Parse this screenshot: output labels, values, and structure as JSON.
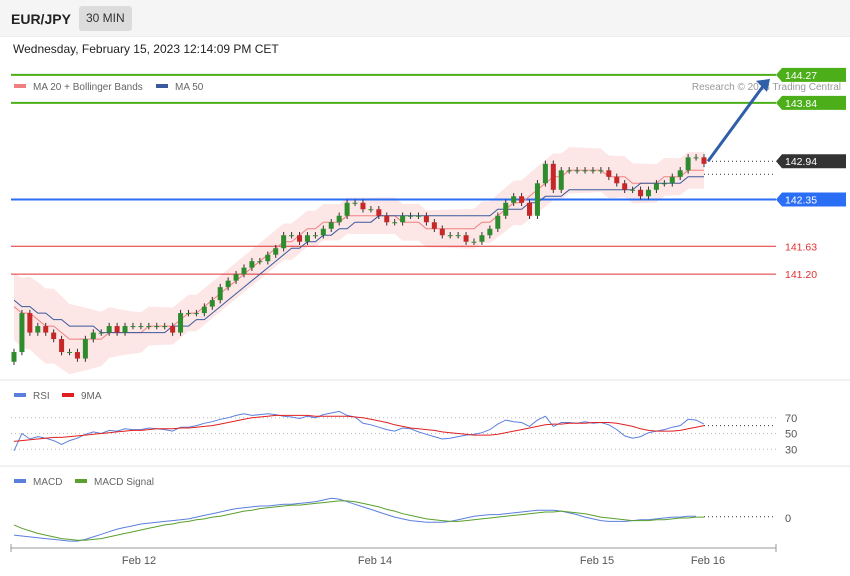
{
  "header": {
    "symbol": "EUR/JPY",
    "timeframe": "30 MIN"
  },
  "timestamp": "Wednesday, February 15, 2023 12:14:09 PM CET",
  "credit": "Research © 2023 Trading Central",
  "chart_data": {
    "type": "candlestick",
    "price_panel": {
      "legend": [
        {
          "name": "MA 20 + Bollinger Bands",
          "color": "#f08080"
        },
        {
          "name": "MA 50",
          "color": "#3a5a9c"
        }
      ],
      "y_range": [
        139.6,
        144.5
      ],
      "levels": [
        {
          "label": "144.27",
          "value": 144.27,
          "kind": "resistance",
          "color": "#4caf1a"
        },
        {
          "label": "143.84",
          "value": 143.84,
          "kind": "resistance",
          "color": "#4caf1a"
        },
        {
          "label": "142.94",
          "value": 142.94,
          "kind": "last-price",
          "color": "#333333"
        },
        {
          "label": "142.35",
          "value": 142.35,
          "kind": "pivot",
          "color": "#2a6ef5"
        },
        {
          "label": "141.63",
          "value": 141.63,
          "kind": "support",
          "color": "#e03030"
        },
        {
          "label": "141.20",
          "value": 141.2,
          "kind": "support",
          "color": "#e03030"
        }
      ],
      "arrow": {
        "from": 142.94,
        "to": 144.27,
        "direction": "up"
      },
      "close": [
        140.0,
        140.6,
        140.3,
        140.4,
        140.3,
        140.2,
        140.0,
        140.0,
        139.9,
        140.2,
        140.3,
        140.3,
        140.4,
        140.3,
        140.4,
        140.4,
        140.4,
        140.4,
        140.4,
        140.4,
        140.3,
        140.6,
        140.6,
        140.6,
        140.7,
        140.8,
        141.0,
        141.1,
        141.2,
        141.3,
        141.4,
        141.4,
        141.5,
        141.6,
        141.8,
        141.8,
        141.7,
        141.8,
        141.8,
        141.9,
        142.0,
        142.1,
        142.3,
        142.3,
        142.2,
        142.2,
        142.1,
        142.0,
        142.0,
        142.1,
        142.1,
        142.1,
        142.0,
        141.9,
        141.8,
        141.8,
        141.8,
        141.7,
        141.7,
        141.8,
        141.9,
        142.1,
        142.3,
        142.4,
        142.3,
        142.1,
        142.6,
        142.9,
        142.5,
        142.8,
        142.8,
        142.8,
        142.8,
        142.8,
        142.8,
        142.7,
        142.6,
        142.5,
        142.5,
        142.4,
        142.5,
        142.6,
        142.6,
        142.7,
        142.8,
        143.0,
        143.0,
        142.9
      ],
      "ma20": [
        140.7,
        140.6,
        140.6,
        140.5,
        140.4,
        140.4,
        140.3,
        140.2,
        140.2,
        140.2,
        140.2,
        140.2,
        140.3,
        140.3,
        140.3,
        140.3,
        140.3,
        140.4,
        140.4,
        140.4,
        140.4,
        140.5,
        140.6,
        140.6,
        140.7,
        140.8,
        140.9,
        141.0,
        141.1,
        141.2,
        141.3,
        141.4,
        141.5,
        141.6,
        141.7,
        141.7,
        141.8,
        141.9,
        141.9,
        142.0,
        142.0,
        142.0,
        142.1,
        142.1,
        142.1,
        142.1,
        142.1,
        142.1,
        142.1,
        142.0,
        142.0,
        142.0,
        141.9,
        141.9,
        141.9,
        141.9,
        141.9,
        141.9,
        141.9,
        142.0,
        142.0,
        142.1,
        142.2,
        142.3,
        142.3,
        142.4,
        142.5,
        142.6,
        142.7,
        142.7,
        142.8,
        142.8,
        142.8,
        142.8,
        142.8,
        142.7,
        142.7,
        142.7,
        142.6,
        142.6,
        142.6,
        142.6,
        142.7,
        142.7,
        142.7,
        142.8,
        142.8,
        142.8
      ],
      "ma50": [
        140.8,
        140.7,
        140.7,
        140.6,
        140.6,
        140.5,
        140.5,
        140.4,
        140.4,
        140.4,
        140.4,
        140.3,
        140.3,
        140.3,
        140.3,
        140.3,
        140.3,
        140.3,
        140.3,
        140.3,
        140.4,
        140.4,
        140.4,
        140.5,
        140.5,
        140.6,
        140.7,
        140.8,
        140.9,
        141.0,
        141.1,
        141.2,
        141.3,
        141.4,
        141.5,
        141.6,
        141.6,
        141.7,
        141.7,
        141.8,
        141.8,
        141.9,
        141.9,
        142.0,
        142.0,
        142.0,
        142.1,
        142.1,
        142.1,
        142.1,
        142.1,
        142.1,
        142.1,
        142.1,
        142.1,
        142.1,
        142.1,
        142.1,
        142.1,
        142.1,
        142.1,
        142.2,
        142.2,
        142.2,
        142.2,
        142.3,
        142.3,
        142.4,
        142.4,
        142.4,
        142.5,
        142.5,
        142.5,
        142.5,
        142.5,
        142.5,
        142.5,
        142.5,
        142.5,
        142.6,
        142.6,
        142.6,
        142.6,
        142.6,
        142.6,
        142.7,
        142.7,
        142.7
      ]
    },
    "rsi_panel": {
      "legend": [
        {
          "name": "RSI",
          "color": "#5b7fdd"
        },
        {
          "name": "9MA",
          "color": "#e02020"
        }
      ],
      "levels": [
        {
          "label": "70",
          "value": 70
        },
        {
          "label": "50",
          "value": 50
        },
        {
          "label": "30",
          "value": 30
        }
      ],
      "y_range": [
        10,
        90
      ],
      "rsi": [
        28,
        50,
        43,
        46,
        44,
        41,
        36,
        41,
        44,
        49,
        52,
        50,
        54,
        53,
        56,
        55,
        55,
        57,
        56,
        55,
        53,
        58,
        58,
        60,
        63,
        65,
        68,
        70,
        73,
        75,
        73,
        74,
        75,
        74,
        72,
        71,
        69,
        72,
        70,
        74,
        76,
        78,
        73,
        71,
        63,
        61,
        58,
        55,
        53,
        57,
        56,
        52,
        49,
        46,
        43,
        44,
        46,
        48,
        49,
        51,
        55,
        62,
        67,
        65,
        64,
        59,
        67,
        72,
        59,
        64,
        64,
        63,
        65,
        63,
        64,
        61,
        55,
        47,
        44,
        46,
        51,
        53,
        55,
        58,
        60,
        68,
        67,
        62
      ],
      "ma9": [
        40,
        41,
        42,
        43,
        44,
        45,
        45,
        46,
        47,
        48,
        49,
        50,
        51,
        52,
        53,
        54,
        54,
        55,
        56,
        56,
        56,
        57,
        57,
        58,
        59,
        60,
        62,
        64,
        66,
        68,
        70,
        71,
        72,
        73,
        73,
        73,
        73,
        73,
        72,
        72,
        72,
        72,
        72,
        71,
        70,
        68,
        66,
        64,
        61,
        59,
        57,
        56,
        55,
        54,
        52,
        51,
        50,
        49,
        48,
        48,
        48,
        49,
        51,
        53,
        55,
        57,
        59,
        61,
        62,
        62,
        63,
        63,
        63,
        64,
        64,
        64,
        63,
        61,
        59,
        56,
        54,
        53,
        53,
        53,
        54,
        56,
        58,
        60
      ]
    },
    "macd_panel": {
      "legend": [
        {
          "name": "MACD",
          "color": "#5b7fdd"
        },
        {
          "name": "MACD Signal",
          "color": "#5aa02c"
        }
      ],
      "levels": [
        {
          "label": "0",
          "value": 0
        }
      ],
      "y_range": [
        -0.35,
        0.35
      ],
      "macd": [
        -0.2,
        -0.21,
        -0.22,
        -0.23,
        -0.24,
        -0.25,
        -0.26,
        -0.27,
        -0.27,
        -0.25,
        -0.22,
        -0.19,
        -0.16,
        -0.13,
        -0.11,
        -0.09,
        -0.07,
        -0.06,
        -0.05,
        -0.04,
        -0.03,
        -0.02,
        -0.01,
        0.01,
        0.03,
        0.05,
        0.07,
        0.09,
        0.11,
        0.12,
        0.13,
        0.14,
        0.14,
        0.15,
        0.16,
        0.16,
        0.17,
        0.18,
        0.19,
        0.21,
        0.23,
        0.22,
        0.19,
        0.16,
        0.13,
        0.1,
        0.07,
        0.04,
        0.01,
        -0.01,
        -0.03,
        -0.04,
        -0.05,
        -0.05,
        -0.05,
        -0.04,
        -0.02,
        0.0,
        0.02,
        0.03,
        0.04,
        0.04,
        0.05,
        0.06,
        0.07,
        0.08,
        0.09,
        0.09,
        0.09,
        0.08,
        0.06,
        0.04,
        0.01,
        -0.01,
        -0.03,
        -0.04,
        -0.04,
        -0.04,
        -0.03,
        -0.02,
        -0.02,
        -0.01,
        0.0,
        0.01,
        0.01,
        0.02,
        0.02
      ],
      "signal": [
        -0.08,
        -0.12,
        -0.15,
        -0.18,
        -0.2,
        -0.22,
        -0.24,
        -0.25,
        -0.26,
        -0.26,
        -0.25,
        -0.24,
        -0.22,
        -0.2,
        -0.18,
        -0.16,
        -0.14,
        -0.12,
        -0.1,
        -0.08,
        -0.07,
        -0.05,
        -0.04,
        -0.02,
        -0.01,
        0.01,
        0.02,
        0.04,
        0.06,
        0.08,
        0.09,
        0.11,
        0.12,
        0.13,
        0.14,
        0.15,
        0.15,
        0.16,
        0.17,
        0.18,
        0.19,
        0.2,
        0.2,
        0.19,
        0.17,
        0.15,
        0.13,
        0.1,
        0.08,
        0.05,
        0.03,
        0.01,
        -0.01,
        -0.02,
        -0.03,
        -0.04,
        -0.04,
        -0.03,
        -0.02,
        -0.01,
        0.0,
        0.01,
        0.02,
        0.03,
        0.04,
        0.05,
        0.06,
        0.07,
        0.07,
        0.08,
        0.07,
        0.06,
        0.05,
        0.03,
        0.01,
        0.0,
        -0.01,
        -0.02,
        -0.03,
        -0.03,
        -0.03,
        -0.02,
        -0.02,
        -0.01,
        0.0,
        0.0,
        0.01,
        0.01
      ]
    },
    "x_ticks": [
      {
        "label": "Feb 12",
        "index": 18
      },
      {
        "label": "Feb 14",
        "index": 52
      },
      {
        "label": "Feb 15",
        "index": 70
      },
      {
        "label": "Feb 16",
        "index": 86
      }
    ]
  }
}
